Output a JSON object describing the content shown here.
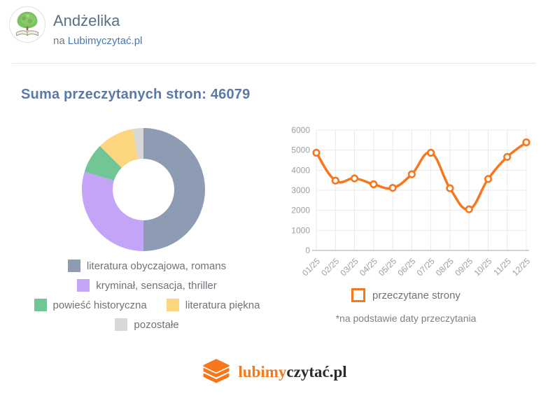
{
  "header": {
    "name": "Andżelika",
    "subtitle_prefix": "na",
    "subtitle_link": "Lubimyczytać.pl"
  },
  "page_title": "Suma przeczytanych stron: 46079",
  "total_pages": "46079",
  "colors": {
    "accent_orange": "#f7771c",
    "title_blue": "#5b79a7",
    "link_blue": "#4679b8",
    "legend_text": "#6e7379",
    "axis_text": "#9aa0a6",
    "grid": "#e9e9e9",
    "axis_line": "#b9b9b9"
  },
  "chart_data": [
    {
      "type": "pie",
      "style": "donut",
      "labels": [
        "literatura obyczajowa, romans",
        "kryminał, sensacja, thriller",
        "powieść historyczna",
        "literatura piękna",
        "pozostałe"
      ],
      "values_percent": [
        50,
        29.7,
        7.8,
        9.7,
        2.8
      ],
      "colors": [
        "#8d9bb3",
        "#c3a4f7",
        "#72c695",
        "#fbd67f",
        "#d8d8d8"
      ],
      "legend_position": "bottom",
      "legend_rows": [
        [
          0
        ],
        [
          1
        ],
        [
          2,
          3
        ],
        [
          4
        ]
      ]
    },
    {
      "type": "line",
      "x": [
        "01/25",
        "02/25",
        "03/25",
        "04/25",
        "05/25",
        "06/25",
        "07/25",
        "08/25",
        "09/25",
        "10/25",
        "11/25",
        "12/25"
      ],
      "series": [
        {
          "name": "przeczytane strony",
          "values": [
            4870,
            3480,
            3590,
            3300,
            3120,
            3800,
            4870,
            3100,
            2050,
            3560,
            4660,
            5390
          ]
        }
      ],
      "ylim": [
        0,
        6000
      ],
      "yticks": [
        0,
        1000,
        2000,
        3000,
        4000,
        5000,
        6000
      ],
      "grid": true,
      "line_color": "#f7771c",
      "legend_position": "bottom",
      "footnote": "*na podstawie daty przeczytania"
    }
  ],
  "footer": {
    "logo_orange": "lubimy",
    "logo_dark": "czytać.pl"
  }
}
